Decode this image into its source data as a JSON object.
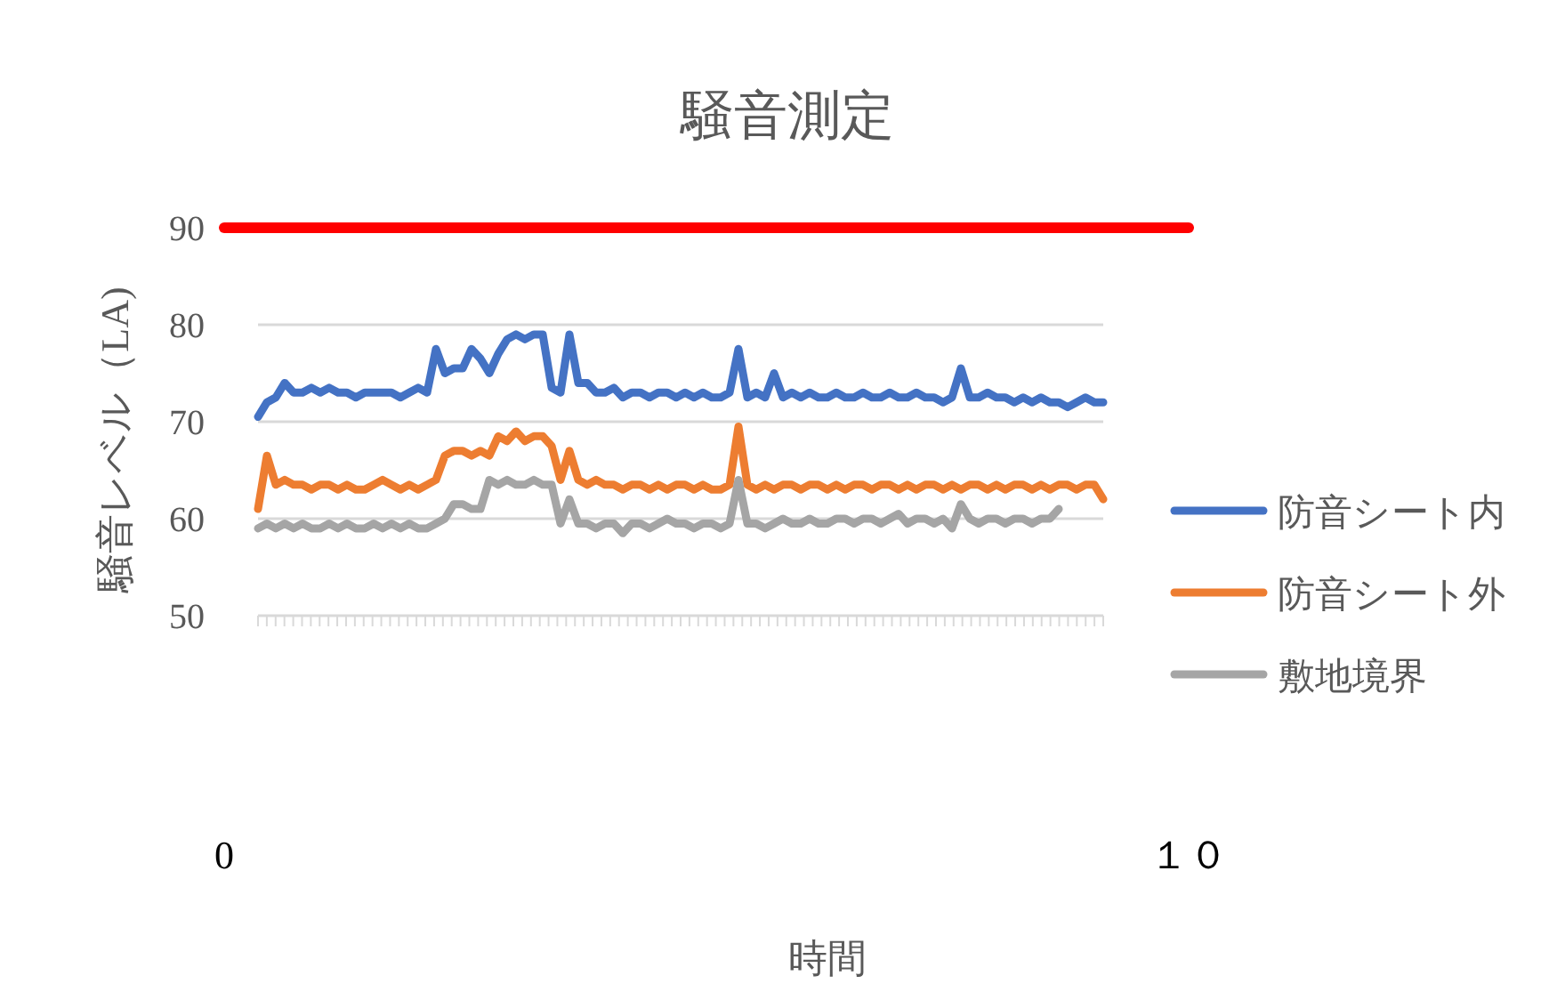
{
  "chart_data": {
    "type": "line",
    "title": "騒音測定",
    "xlabel": "時間",
    "ylabel": "騒音レベル（LA)",
    "categories": [
      null,
      null,
      null,
      null,
      null,
      null,
      null,
      null,
      null,
      null,
      null,
      null,
      null,
      null,
      null,
      null,
      null,
      null,
      null,
      null,
      null,
      null,
      null,
      null,
      null,
      null,
      null,
      null,
      null,
      null,
      null,
      null,
      null,
      null,
      null,
      null,
      null,
      null,
      null,
      null,
      null,
      null,
      null,
      null,
      null,
      null,
      null,
      null,
      null,
      null,
      null,
      null,
      null,
      null,
      null,
      null,
      null,
      null,
      null,
      null,
      null,
      null,
      null,
      null,
      null,
      null,
      null,
      null,
      null,
      null,
      null,
      null,
      null,
      null,
      null,
      null,
      null,
      null,
      null,
      null,
      null,
      null,
      null,
      null,
      null,
      null,
      null,
      null,
      null,
      null,
      null,
      null,
      null,
      null,
      null,
      null
    ],
    "ylim": [
      50,
      90
    ],
    "yticks": [
      50,
      60,
      70,
      80,
      90
    ],
    "x2lim": [
      0,
      10
    ],
    "x2ticks": [
      0,
      {
        "value": 10,
        "label": "１０"
      }
    ],
    "grid": "y",
    "legend": "right",
    "line_style": "solid",
    "marker": "none",
    "series": [
      {
        "name": "防音シート内",
        "color": "#4472c4",
        "values": [
          70.5,
          72,
          72.5,
          74,
          73,
          73,
          73.5,
          73,
          73.5,
          73,
          73,
          72.5,
          73,
          73,
          73,
          73,
          72.5,
          73,
          73.5,
          73,
          77.5,
          75,
          75.5,
          75.5,
          77.5,
          76.5,
          75,
          77,
          78.5,
          79,
          78.5,
          79,
          79,
          73.5,
          73,
          79,
          74,
          74,
          73,
          73,
          73.5,
          72.5,
          73,
          73,
          72.5,
          73,
          73,
          72.5,
          73,
          72.5,
          73,
          72.5,
          72.5,
          73,
          77.5,
          72.5,
          73,
          72.5,
          75,
          72.5,
          73,
          72.5,
          73,
          72.5,
          72.5,
          73,
          72.5,
          72.5,
          73,
          72.5,
          72.5,
          73,
          72.5,
          72.5,
          73,
          72.5,
          72.5,
          72,
          72.5,
          75.5,
          72.5,
          72.5,
          73,
          72.5,
          72.5,
          72,
          72.5,
          72,
          72.5,
          72,
          72,
          71.5,
          72,
          72.5,
          72,
          72
        ]
      },
      {
        "name": "防音シート外",
        "color": "#ed7d31",
        "values": [
          61,
          66.5,
          63.5,
          64,
          63.5,
          63.5,
          63,
          63.5,
          63.5,
          63,
          63.5,
          63,
          63,
          63.5,
          64,
          63.5,
          63,
          63.5,
          63,
          63.5,
          64,
          66.5,
          67,
          67,
          66.5,
          67,
          66.5,
          68.5,
          68,
          69,
          68,
          68.5,
          68.5,
          67.5,
          64,
          67,
          64,
          63.5,
          64,
          63.5,
          63.5,
          63,
          63.5,
          63.5,
          63,
          63.5,
          63,
          63.5,
          63.5,
          63,
          63.5,
          63,
          63,
          63.5,
          69.5,
          63.5,
          63,
          63.5,
          63,
          63.5,
          63.5,
          63,
          63.5,
          63.5,
          63,
          63.5,
          63,
          63.5,
          63.5,
          63,
          63.5,
          63.5,
          63,
          63.5,
          63,
          63.5,
          63.5,
          63,
          63.5,
          63,
          63.5,
          63.5,
          63,
          63.5,
          63,
          63.5,
          63.5,
          63,
          63.5,
          63,
          63.5,
          63.5,
          63,
          63.5,
          63.5,
          62
        ]
      },
      {
        "name": "敷地境界",
        "color": "#a5a5a5",
        "values": [
          59,
          59.5,
          59,
          59.5,
          59,
          59.5,
          59,
          59,
          59.5,
          59,
          59.5,
          59,
          59,
          59.5,
          59,
          59.5,
          59,
          59.5,
          59,
          59,
          59.5,
          60,
          61.5,
          61.5,
          61,
          61,
          64,
          63.5,
          64,
          63.5,
          63.5,
          64,
          63.5,
          63.5,
          59.5,
          62,
          59.5,
          59.5,
          59,
          59.5,
          59.5,
          58.5,
          59.5,
          59.5,
          59,
          59.5,
          60,
          59.5,
          59.5,
          59,
          59.5,
          59.5,
          59,
          59.5,
          64,
          59.5,
          59.5,
          59,
          59.5,
          60,
          59.5,
          59.5,
          60,
          59.5,
          59.5,
          60,
          60,
          59.5,
          60,
          60,
          59.5,
          60,
          60.5,
          59.5,
          60,
          60,
          59.5,
          60,
          59,
          61.5,
          60,
          59.5,
          60,
          60,
          59.5,
          60,
          60,
          59.5,
          60,
          60,
          61,
          null,
          null,
          null,
          null,
          null
        ]
      },
      {
        "type": "line",
        "color": "#ff0000",
        "axis": "x2",
        "x": [
          0,
          10
        ],
        "values": [
          90,
          90
        ]
      }
    ]
  }
}
